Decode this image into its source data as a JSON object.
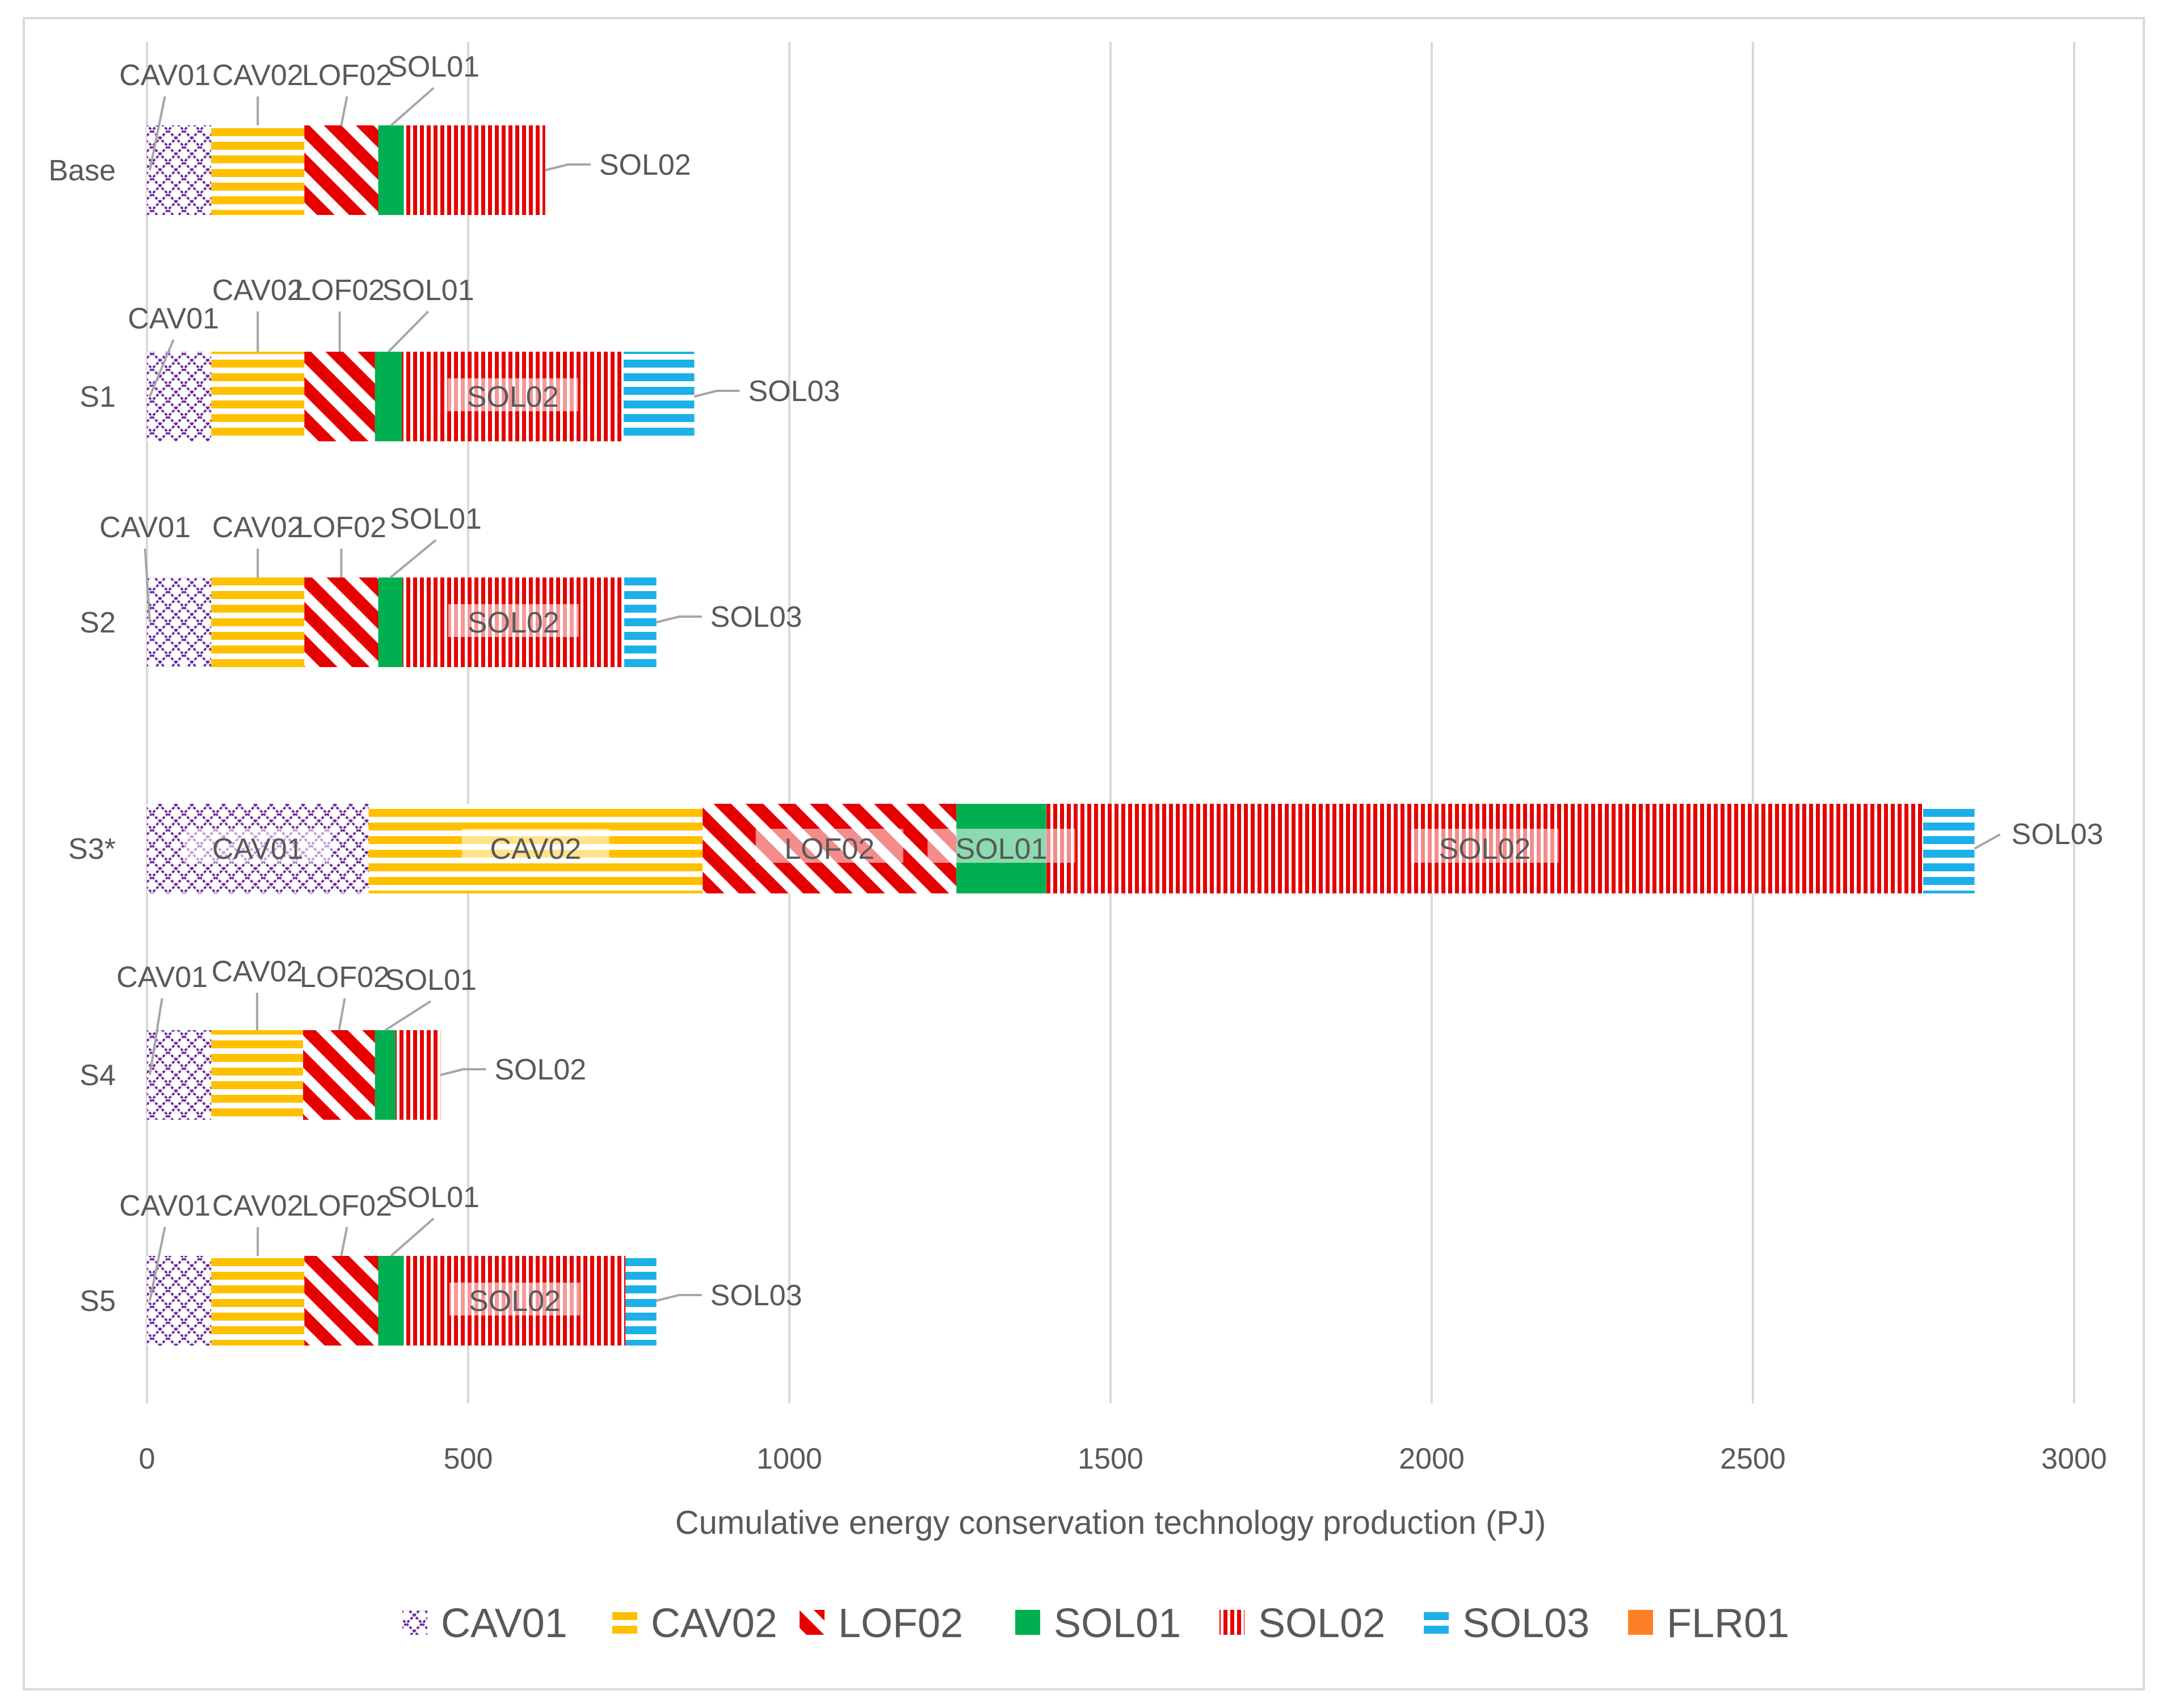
{
  "chart_data": {
    "type": "bar",
    "orientation": "horizontal",
    "stacked": true,
    "title": "",
    "xlabel": "Cumulative energy  conservation technology production (PJ)",
    "ylabel": "",
    "xlim": [
      0,
      3000
    ],
    "xticks": [
      0,
      500,
      1000,
      1500,
      2000,
      2500,
      3000
    ],
    "grid": "vertical",
    "legend_position": "bottom",
    "categories": [
      "Base",
      "S1",
      "S2",
      "S3*",
      "S4",
      "S5"
    ],
    "series": [
      {
        "name": "CAV01",
        "color": "#7030a0",
        "pattern": "diamond-lattice",
        "values": [
          100,
          100,
          100,
          345,
          100,
          100
        ]
      },
      {
        "name": "CAV02",
        "color": "#ffc000",
        "pattern": "horizontal-stripes",
        "values": [
          145,
          145,
          145,
          520,
          143,
          145
        ]
      },
      {
        "name": "LOF02",
        "color": "#e60000",
        "pattern": "diagonal-stripes",
        "values": [
          115,
          110,
          115,
          395,
          112,
          115
        ]
      },
      {
        "name": "SOL01",
        "color": "#00b050",
        "pattern": "solid",
        "values": [
          40,
          42,
          38,
          140,
          32,
          40
        ]
      },
      {
        "name": "SOL02",
        "color": "#e60000",
        "pattern": "vertical-stripes",
        "values": [
          220,
          345,
          345,
          1365,
          70,
          345
        ]
      },
      {
        "name": "SOL03",
        "color": "#1cb0e8",
        "pattern": "horizontal-stripes",
        "values": [
          0,
          110,
          50,
          80,
          0,
          48
        ]
      },
      {
        "name": "FLR01",
        "color": "#ff7f27",
        "pattern": "solid",
        "values": [
          0,
          0,
          0,
          0,
          0,
          0
        ]
      }
    ]
  }
}
